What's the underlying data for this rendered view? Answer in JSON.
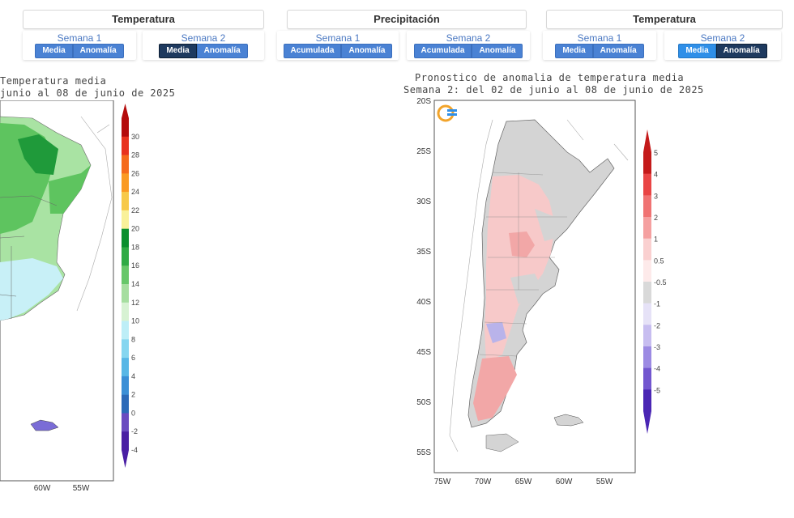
{
  "controls": {
    "group1": {
      "title": "Temperatura",
      "weeks": [
        {
          "label": "Semana 1",
          "buttons": [
            "Media",
            "Anomalía"
          ]
        },
        {
          "label": "Semana 2",
          "buttons": [
            "Media",
            "Anomalía"
          ]
        }
      ]
    },
    "group2": {
      "title": "Precipitación",
      "weeks": [
        {
          "label": "Semana 1",
          "buttons": [
            "Acumulada",
            "Anomalía"
          ]
        },
        {
          "label": "Semana 2",
          "buttons": [
            "Acumulada",
            "Anomalía"
          ]
        }
      ]
    },
    "group3": {
      "title": "Temperatura",
      "weeks": [
        {
          "label": "Semana 1",
          "buttons": [
            "Media",
            "Anomalía"
          ]
        },
        {
          "label": "Semana 2",
          "buttons": [
            "Media",
            "Anomalía"
          ]
        }
      ]
    }
  },
  "left_map": {
    "title_line1": "Temperatura media",
    "title_line2": "junio al 08 de junio de 2025",
    "x_ticks": [
      "60W",
      "55W"
    ],
    "colorbar_labels": [
      "30",
      "28",
      "26",
      "24",
      "22",
      "20",
      "18",
      "16",
      "14",
      "12",
      "10",
      "8",
      "6",
      "4",
      "2",
      "0",
      "-2",
      "-4"
    ],
    "colorbar_colors": [
      "#b40b0b",
      "#e8321e",
      "#f56b1c",
      "#fa9a23",
      "#f7c94a",
      "#f9f19a",
      "#0a8f2e",
      "#2faa45",
      "#67c76a",
      "#a6dea0",
      "#d7f2d3",
      "#bdeef7",
      "#86d6f0",
      "#58b7e6",
      "#3b8fd6",
      "#2c6ab8",
      "#6a4bc0",
      "#4a1fa4"
    ],
    "colors": {
      "dark_green": "#1f9a3a",
      "green": "#5ec45f",
      "light_green": "#a9e3a3",
      "cyan": "#c8f0f7"
    }
  },
  "right_map": {
    "title_line1": "Pronostico de anomalia de temperatura media",
    "title_line2": "Semana 2: del 02 de junio al 08 de junio de 2025",
    "y_ticks": [
      "20S",
      "25S",
      "30S",
      "35S",
      "40S",
      "45S",
      "50S",
      "55S"
    ],
    "x_ticks": [
      "75W",
      "70W",
      "65W",
      "60W",
      "55W"
    ],
    "colorbar_labels": [
      "5",
      "4",
      "3",
      "2",
      "1",
      "0.5",
      "-0.5",
      "-1",
      "-2",
      "-3",
      "-4",
      "-5"
    ],
    "colorbar_colors": [
      "#c41a1a",
      "#e94545",
      "#f07373",
      "#f5a0a0",
      "#fad0d0",
      "#fdeaea",
      "#d9d9d9",
      "#e6e2f7",
      "#c7bdf0",
      "#9c8ae3",
      "#7256cf",
      "#4a26b4"
    ],
    "colors": {
      "pink": "#f7c9c9",
      "salmon": "#f2a7a7",
      "gray": "#d4d4d4",
      "lavender": "#b9b3ea"
    }
  }
}
